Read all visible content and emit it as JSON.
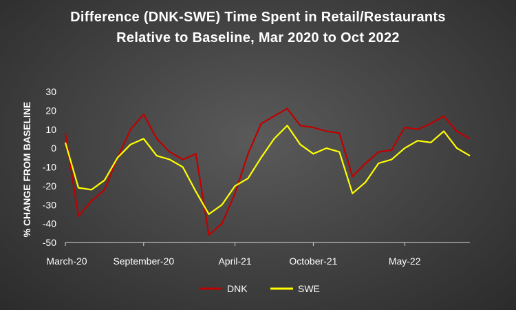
{
  "chart_data": {
    "type": "line",
    "title": "Difference (DNK-SWE) Time Spent in Retail/Restaurants Relative to Baseline, Mar 2020 to Oct 2022",
    "xlabel": "",
    "ylabel": "% CHANGE FROM BASELINE",
    "ylim": [
      -50,
      30
    ],
    "yticks": [
      30,
      20,
      10,
      0,
      -10,
      -20,
      -30,
      -40,
      -50
    ],
    "xticks": [
      "March-20",
      "September-20",
      "April-21",
      "October-21",
      "May-22"
    ],
    "x_range": [
      "2020-03",
      "2022-10"
    ],
    "grid": false,
    "legend_position": "bottom",
    "x": [
      "2020-03",
      "2020-04",
      "2020-05",
      "2020-06",
      "2020-07",
      "2020-08",
      "2020-09",
      "2020-10",
      "2020-11",
      "2020-12",
      "2021-01",
      "2021-02",
      "2021-03",
      "2021-04",
      "2021-05",
      "2021-06",
      "2021-07",
      "2021-08",
      "2021-09",
      "2021-10",
      "2021-11",
      "2021-12",
      "2022-01",
      "2022-02",
      "2022-03",
      "2022-04",
      "2022-05",
      "2022-06",
      "2022-07",
      "2022-08",
      "2022-09",
      "2022-10"
    ],
    "series": [
      {
        "name": "DNK",
        "color": "#c00000",
        "values": [
          8,
          -36,
          -28,
          -22,
          -5,
          10,
          18,
          5,
          -2,
          -6,
          -3,
          -46,
          -40,
          -24,
          -3,
          13,
          17,
          21,
          12,
          11,
          9,
          8,
          -15,
          -8,
          -2,
          -1,
          11,
          10,
          13,
          17,
          9,
          5
        ]
      },
      {
        "name": "SWE",
        "color": "#ffff00",
        "values": [
          3,
          -21,
          -22,
          -17,
          -5,
          2,
          5,
          -4,
          -6,
          -10,
          -23,
          -35,
          -30,
          -20,
          -16,
          -5,
          5,
          12,
          2,
          -3,
          0,
          -2,
          -24,
          -18,
          -8,
          -6,
          0,
          4,
          3,
          9,
          0,
          -4
        ]
      }
    ]
  }
}
